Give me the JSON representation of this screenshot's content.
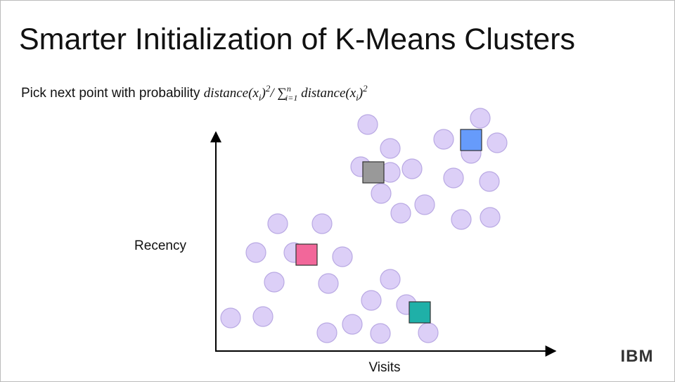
{
  "title": "Smarter Initialization of K-Means Clusters",
  "subtitle": {
    "lead": "Pick next point with probability",
    "formula": [
      "distance(x",
      "i",
      ")",
      "2",
      "/ ",
      "∑",
      "n",
      "i=1",
      " distance(x",
      "i",
      ")",
      "2"
    ]
  },
  "y_axis_label": "Recency",
  "x_axis_label": "Visits",
  "logo": "IBM"
}
